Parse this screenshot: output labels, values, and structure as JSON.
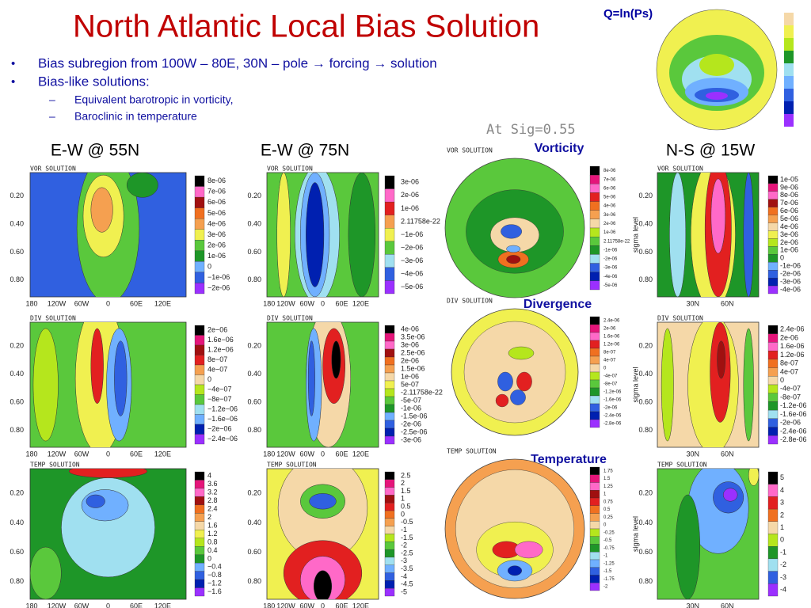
{
  "title": "North Atlantic Local Bias Solution",
  "corner_label": "Q=ln(Ps)",
  "bullets": [
    "Bias subregion from 100W – 80E, 30N – pole → forcing → solution",
    "Bias-like solutions:"
  ],
  "sub_bullets": [
    "Equivalent barotropic in vorticity,",
    "Baroclinic in temperature"
  ],
  "level_label": "At Sig=0.55",
  "row_labels": [
    "Vorticity",
    "Divergence",
    "Temperature"
  ],
  "columns": [
    {
      "heading": "E-W @ 55N",
      "yticks": [
        "0.20",
        "0.40",
        "0.60",
        "0.80"
      ],
      "xticks": [
        "180",
        "120W",
        "60W",
        "0",
        "60E",
        "120E"
      ],
      "panels": [
        {
          "title": "VOR SOLUTION",
          "legend": [
            "8e-06",
            "7e-06",
            "6e-06",
            "5e-06",
            "4e-06",
            "3e-06",
            "2e-06",
            "1e-06",
            "0",
            "−1e-06",
            "−2e-06"
          ]
        },
        {
          "title": "DIV SOLUTION",
          "legend": [
            "2e−06",
            "1.6e−06",
            "1.2e−06",
            "8e−07",
            "4e−07",
            "0",
            "−4e−07",
            "−8e−07",
            "−1.2e−06",
            "−1.6e−06",
            "−2e−06",
            "−2.4e−06"
          ]
        },
        {
          "title": "TEMP SOLUTION",
          "legend": [
            "4",
            "3.6",
            "3.2",
            "2.8",
            "2.4",
            "2",
            "1.6",
            "1.2",
            "0.8",
            "0.4",
            "0",
            "−0.4",
            "−0.8",
            "−1.2",
            "−1.6"
          ]
        }
      ]
    },
    {
      "heading": "E-W @ 75N",
      "yticks": [
        "0.20",
        "0.40",
        "0.60",
        "0.80"
      ],
      "xticks": [
        "180",
        "120W",
        "60W",
        "0",
        "60E",
        "120E"
      ],
      "panels": [
        {
          "title": "VOR SOLUTION",
          "legend": [
            "3e-06",
            "2e-06",
            "1e-06",
            "2.11758e-22",
            "−1e-06",
            "−2e-06",
            "−3e-06",
            "−4e-06",
            "−5e-06"
          ]
        },
        {
          "title": "DIV SOLUTION",
          "legend": [
            "4e-06",
            "3.5e-06",
            "3e-06",
            "2.5e-06",
            "2e-06",
            "1.5e-06",
            "1e-06",
            "5e-07",
            "-2.11758e-22",
            "-5e-07",
            "-1e-06",
            "-1.5e-06",
            "-2e-06",
            "-2.5e-06",
            "-3e-06"
          ]
        },
        {
          "title": "TEMP SOLUTION",
          "legend": [
            "2.5",
            "2",
            "1.5",
            "1",
            "0.5",
            "0",
            "-0.5",
            "-1",
            "-1.5",
            "-2",
            "-2.5",
            "-3",
            "-3.5",
            "-4",
            "-4.5",
            "-5"
          ]
        }
      ]
    },
    {
      "polar": true,
      "panels": [
        {
          "title": "VOR SOLUTION",
          "legend": [
            "8e-06",
            "7e-06",
            "6e-06",
            "5e-06",
            "4e-06",
            "3e-06",
            "2e-06",
            "1e-06",
            "2.11758e-22",
            "-1e-06",
            "-2e-06",
            "-3e-06",
            "-4e-06",
            "-5e-06"
          ]
        },
        {
          "title": "DIV SOLUTION",
          "legend": [
            "2.4e-06",
            "2e-06",
            "1.6e-06",
            "1.2e-06",
            "8e-07",
            "4e-07",
            "0",
            "-4e-07",
            "-8e-07",
            "-1.2e-06",
            "-1.6e-06",
            "-2e-06",
            "-2.4e-06",
            "-2.8e-06"
          ]
        },
        {
          "title": "TEMP SOLUTION",
          "legend": [
            "1.75",
            "1.5",
            "1.25",
            "1",
            "0.75",
            "0.5",
            "0.25",
            "0",
            "-0.25",
            "-0.5",
            "-0.75",
            "-1",
            "-1.25",
            "-1.5",
            "-1.75",
            "-2"
          ]
        }
      ]
    },
    {
      "heading": "N-S @ 15W",
      "yticks": [
        "0.20",
        "0.40",
        "0.60",
        "0.80"
      ],
      "xticks": [
        "30N",
        "60N"
      ],
      "ylabel": "sigma level",
      "panels": [
        {
          "title": "VOR SOLUTION",
          "legend": [
            "1e-05",
            "9e-06",
            "8e-06",
            "7e-06",
            "6e-06",
            "5e-06",
            "4e-06",
            "3e-06",
            "2e-06",
            "1e-06",
            "0",
            "-1e-06",
            "-2e-06",
            "-3e-06",
            "-4e-06"
          ]
        },
        {
          "title": "DIV SOLUTION",
          "legend": [
            "2.4e-06",
            "2e-06",
            "1.6e-06",
            "1.2e-06",
            "8e-07",
            "4e-07",
            "0",
            "-4e-07",
            "-8e-07",
            "-1.2e-06",
            "-1.6e-06",
            "-2e-06",
            "-2.4e-06",
            "-2.8e-06"
          ]
        },
        {
          "title": "TEMP SOLUTION",
          "legend": [
            "5",
            "4",
            "3",
            "2",
            "1",
            "0",
            "-1",
            "-2",
            "-3",
            "-4"
          ]
        }
      ]
    }
  ]
}
